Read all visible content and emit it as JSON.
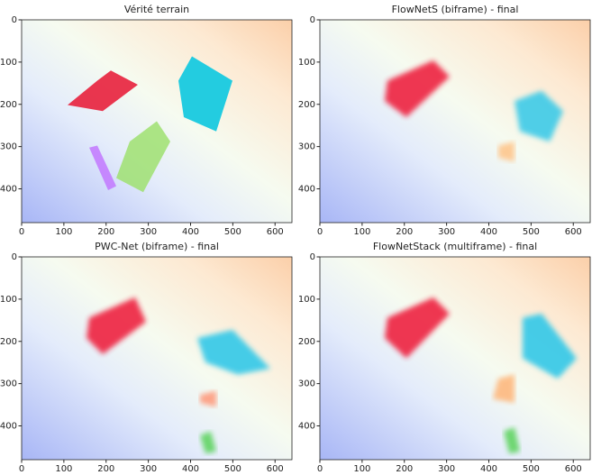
{
  "chart_data": [
    {
      "type": "image",
      "title": "Vérité terrain",
      "xlim": [
        0,
        640
      ],
      "ylim": [
        480,
        0
      ],
      "xticks": [
        0,
        100,
        200,
        300,
        400,
        500,
        600
      ],
      "yticks": [
        0,
        100,
        200,
        300,
        400
      ]
    },
    {
      "type": "image",
      "title": "FlowNetS (biframe) - final",
      "xlim": [
        0,
        640
      ],
      "ylim": [
        480,
        0
      ],
      "xticks": [
        0,
        100,
        200,
        300,
        400,
        500,
        600
      ],
      "yticks": [
        0,
        100,
        200,
        300,
        400
      ]
    },
    {
      "type": "image",
      "title": "PWC-Net (biframe) - final",
      "xlim": [
        0,
        640
      ],
      "ylim": [
        480,
        0
      ],
      "xticks": [
        0,
        100,
        200,
        300,
        400,
        500,
        600
      ],
      "yticks": [
        0,
        100,
        200,
        300,
        400
      ]
    },
    {
      "type": "image",
      "title": "FlowNetStack (multiframe) - final",
      "xlim": [
        0,
        640
      ],
      "ylim": [
        480,
        0
      ],
      "xticks": [
        0,
        100,
        200,
        300,
        400,
        500,
        600
      ],
      "yticks": [
        0,
        100,
        200,
        300,
        400
      ]
    }
  ]
}
